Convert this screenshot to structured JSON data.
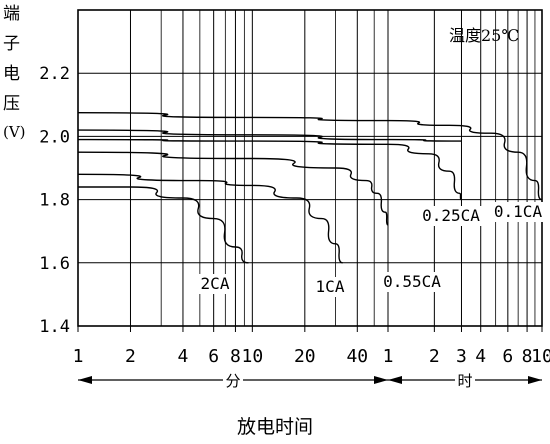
{
  "chart_data": {
    "type": "line",
    "title": "",
    "ylabel_chars": [
      "端",
      "子",
      "电",
      "压",
      "(V)"
    ],
    "xlabel": "放电时间",
    "annotation": "温度25℃",
    "y_ticks": [
      "1.4",
      "1.6",
      "1.8",
      "2.0",
      "2.2"
    ],
    "ylim": [
      1.4,
      2.4
    ],
    "x_ticks": [
      "1",
      "2",
      "4",
      "6",
      "8",
      "10",
      "20",
      "40",
      "1",
      "2",
      "3",
      "4",
      "6",
      "8",
      "10"
    ],
    "x_unit_minutes": "分",
    "x_unit_hours": "时",
    "x_scale": "log",
    "grid": true,
    "series": [
      {
        "name": "2CA",
        "x_minutes": [
          1,
          2,
          4,
          6,
          8,
          9.5
        ],
        "y": [
          1.84,
          1.84,
          1.805,
          1.74,
          1.65,
          1.6
        ]
      },
      {
        "name": "1CA",
        "x_minutes": [
          1,
          5,
          10,
          18,
          25,
          30,
          33
        ],
        "y": [
          1.88,
          1.86,
          1.845,
          1.805,
          1.74,
          1.66,
          1.6
        ]
      },
      {
        "name": "0.55CA",
        "x_minutes": [
          1,
          10,
          30,
          45,
          52,
          58,
          60
        ],
        "y": [
          1.95,
          1.93,
          1.9,
          1.86,
          1.82,
          1.76,
          1.72
        ]
      },
      {
        "name": "0.25CA",
        "x_minutes": [
          1,
          10,
          60,
          110,
          150,
          175,
          180
        ],
        "y": [
          1.99,
          1.985,
          1.975,
          1.945,
          1.89,
          1.82,
          1.8
        ]
      },
      {
        "name": "0.1CA",
        "x_minutes": [
          1,
          10,
          60,
          150,
          280,
          420,
          540,
          600
        ],
        "y": [
          2.075,
          2.06,
          2.05,
          2.035,
          2.01,
          1.95,
          1.86,
          1.8
        ]
      },
      {
        "name": "",
        "x_minutes": [
          1,
          10,
          60,
          180
        ],
        "y": [
          2.02,
          2.005,
          1.99,
          1.985
        ]
      }
    ],
    "series_labels": [
      {
        "text": "2CA"
      },
      {
        "text": "1CA"
      },
      {
        "text": "0.55CA"
      },
      {
        "text": "0.25CA"
      },
      {
        "text": "0.1CA"
      }
    ]
  }
}
